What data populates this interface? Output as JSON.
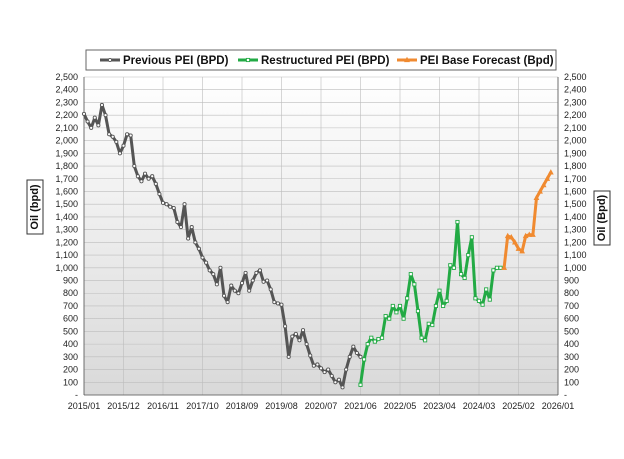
{
  "chart_data": {
    "type": "line",
    "title": "",
    "xlabel": "",
    "ylabel": "Oil (bpd)",
    "ylabel_right": "Oil (Bpd)",
    "y_ticks": [
      "-",
      "100",
      "200",
      "300",
      "400",
      "500",
      "600",
      "700",
      "800",
      "900",
      "1,000",
      "1,100",
      "1,200",
      "1,300",
      "1,400",
      "1,500",
      "1,600",
      "1,700",
      "1,800",
      "1,900",
      "2,000",
      "2,100",
      "2,200",
      "2,300",
      "2,400",
      "2,500"
    ],
    "ylim": [
      0,
      2500
    ],
    "x_ticks": [
      "2015/01",
      "2015/12",
      "2016/11",
      "2017/10",
      "2018/09",
      "2019/08",
      "2020/07",
      "2021/06",
      "2022/05",
      "2023/04",
      "2024/03",
      "2025/02",
      "2026/01"
    ],
    "x_range": [
      "2015-01",
      "2026-01"
    ],
    "grid": true,
    "legend_position": "top",
    "series": [
      {
        "name": "Previous PEI (BPD)",
        "color": "#555555",
        "marker": "circle",
        "x": [
          "2015-01",
          "2015-02",
          "2015-03",
          "2015-04",
          "2015-05",
          "2015-06",
          "2015-07",
          "2015-08",
          "2015-09",
          "2015-10",
          "2015-11",
          "2015-12",
          "2016-01",
          "2016-02",
          "2016-03",
          "2016-04",
          "2016-05",
          "2016-06",
          "2016-07",
          "2016-08",
          "2016-09",
          "2016-10",
          "2016-11",
          "2016-12",
          "2017-01",
          "2017-02",
          "2017-03",
          "2017-04",
          "2017-05",
          "2017-06",
          "2017-07",
          "2017-08",
          "2017-09",
          "2017-10",
          "2017-11",
          "2017-12",
          "2018-01",
          "2018-02",
          "2018-03",
          "2018-04",
          "2018-05",
          "2018-06",
          "2018-07",
          "2018-08",
          "2018-09",
          "2018-10",
          "2018-11",
          "2018-12",
          "2019-01",
          "2019-02",
          "2019-03",
          "2019-04",
          "2019-05",
          "2019-06",
          "2019-07",
          "2019-08",
          "2019-09",
          "2019-10",
          "2019-11",
          "2019-12",
          "2020-01",
          "2020-02",
          "2020-03",
          "2020-04",
          "2020-05",
          "2020-06",
          "2020-07",
          "2020-08",
          "2020-09",
          "2020-10",
          "2020-11",
          "2020-12",
          "2021-01",
          "2021-02",
          "2021-03",
          "2021-04",
          "2021-05",
          "2021-06"
        ],
        "y": [
          2210,
          2150,
          2100,
          2180,
          2120,
          2280,
          2200,
          2050,
          2030,
          1990,
          1900,
          1960,
          2050,
          2040,
          1800,
          1720,
          1680,
          1740,
          1700,
          1720,
          1660,
          1580,
          1510,
          1500,
          1480,
          1470,
          1360,
          1320,
          1500,
          1230,
          1320,
          1200,
          1150,
          1080,
          1040,
          980,
          950,
          870,
          1000,
          780,
          730,
          860,
          820,
          800,
          880,
          960,
          820,
          900,
          960,
          980,
          890,
          900,
          830,
          730,
          720,
          710,
          540,
          300,
          460,
          480,
          430,
          510,
          400,
          310,
          230,
          240,
          210,
          180,
          200,
          150,
          100,
          120,
          60,
          200,
          300,
          380,
          330,
          300
        ]
      },
      {
        "name": "Restructured PEI (BPD)",
        "color": "#22aa44",
        "marker": "square",
        "x": [
          "2021-06",
          "2021-07",
          "2021-08",
          "2021-09",
          "2021-10",
          "2021-11",
          "2021-12",
          "2022-01",
          "2022-02",
          "2022-03",
          "2022-04",
          "2022-05",
          "2022-06",
          "2022-07",
          "2022-08",
          "2022-09",
          "2022-10",
          "2022-11",
          "2022-12",
          "2023-01",
          "2023-02",
          "2023-03",
          "2023-04",
          "2023-05",
          "2023-06",
          "2023-07",
          "2023-08",
          "2023-09",
          "2023-10",
          "2023-11",
          "2023-12",
          "2024-01",
          "2024-02",
          "2024-03",
          "2024-04",
          "2024-05",
          "2024-06",
          "2024-07",
          "2024-08",
          "2024-09"
        ],
        "y": [
          80,
          280,
          400,
          450,
          420,
          440,
          450,
          620,
          600,
          700,
          650,
          700,
          600,
          760,
          950,
          870,
          660,
          450,
          430,
          560,
          550,
          700,
          820,
          700,
          740,
          1020,
          1000,
          1360,
          950,
          920,
          1100,
          1240,
          760,
          740,
          710,
          830,
          750,
          980,
          1000,
          1000
        ]
      },
      {
        "name": "PEI Base Forecast (Bpd)",
        "color": "#f08a30",
        "marker": "triangle",
        "x": [
          "2024-10",
          "2024-11",
          "2024-12",
          "2025-01",
          "2025-02",
          "2025-03",
          "2025-04",
          "2025-05",
          "2025-06",
          "2025-07",
          "2025-08",
          "2025-09",
          "2025-10",
          "2025-11"
        ],
        "y": [
          1000,
          1250,
          1240,
          1200,
          1150,
          1130,
          1250,
          1260,
          1260,
          1550,
          1600,
          1650,
          1700,
          1750
        ]
      }
    ]
  }
}
